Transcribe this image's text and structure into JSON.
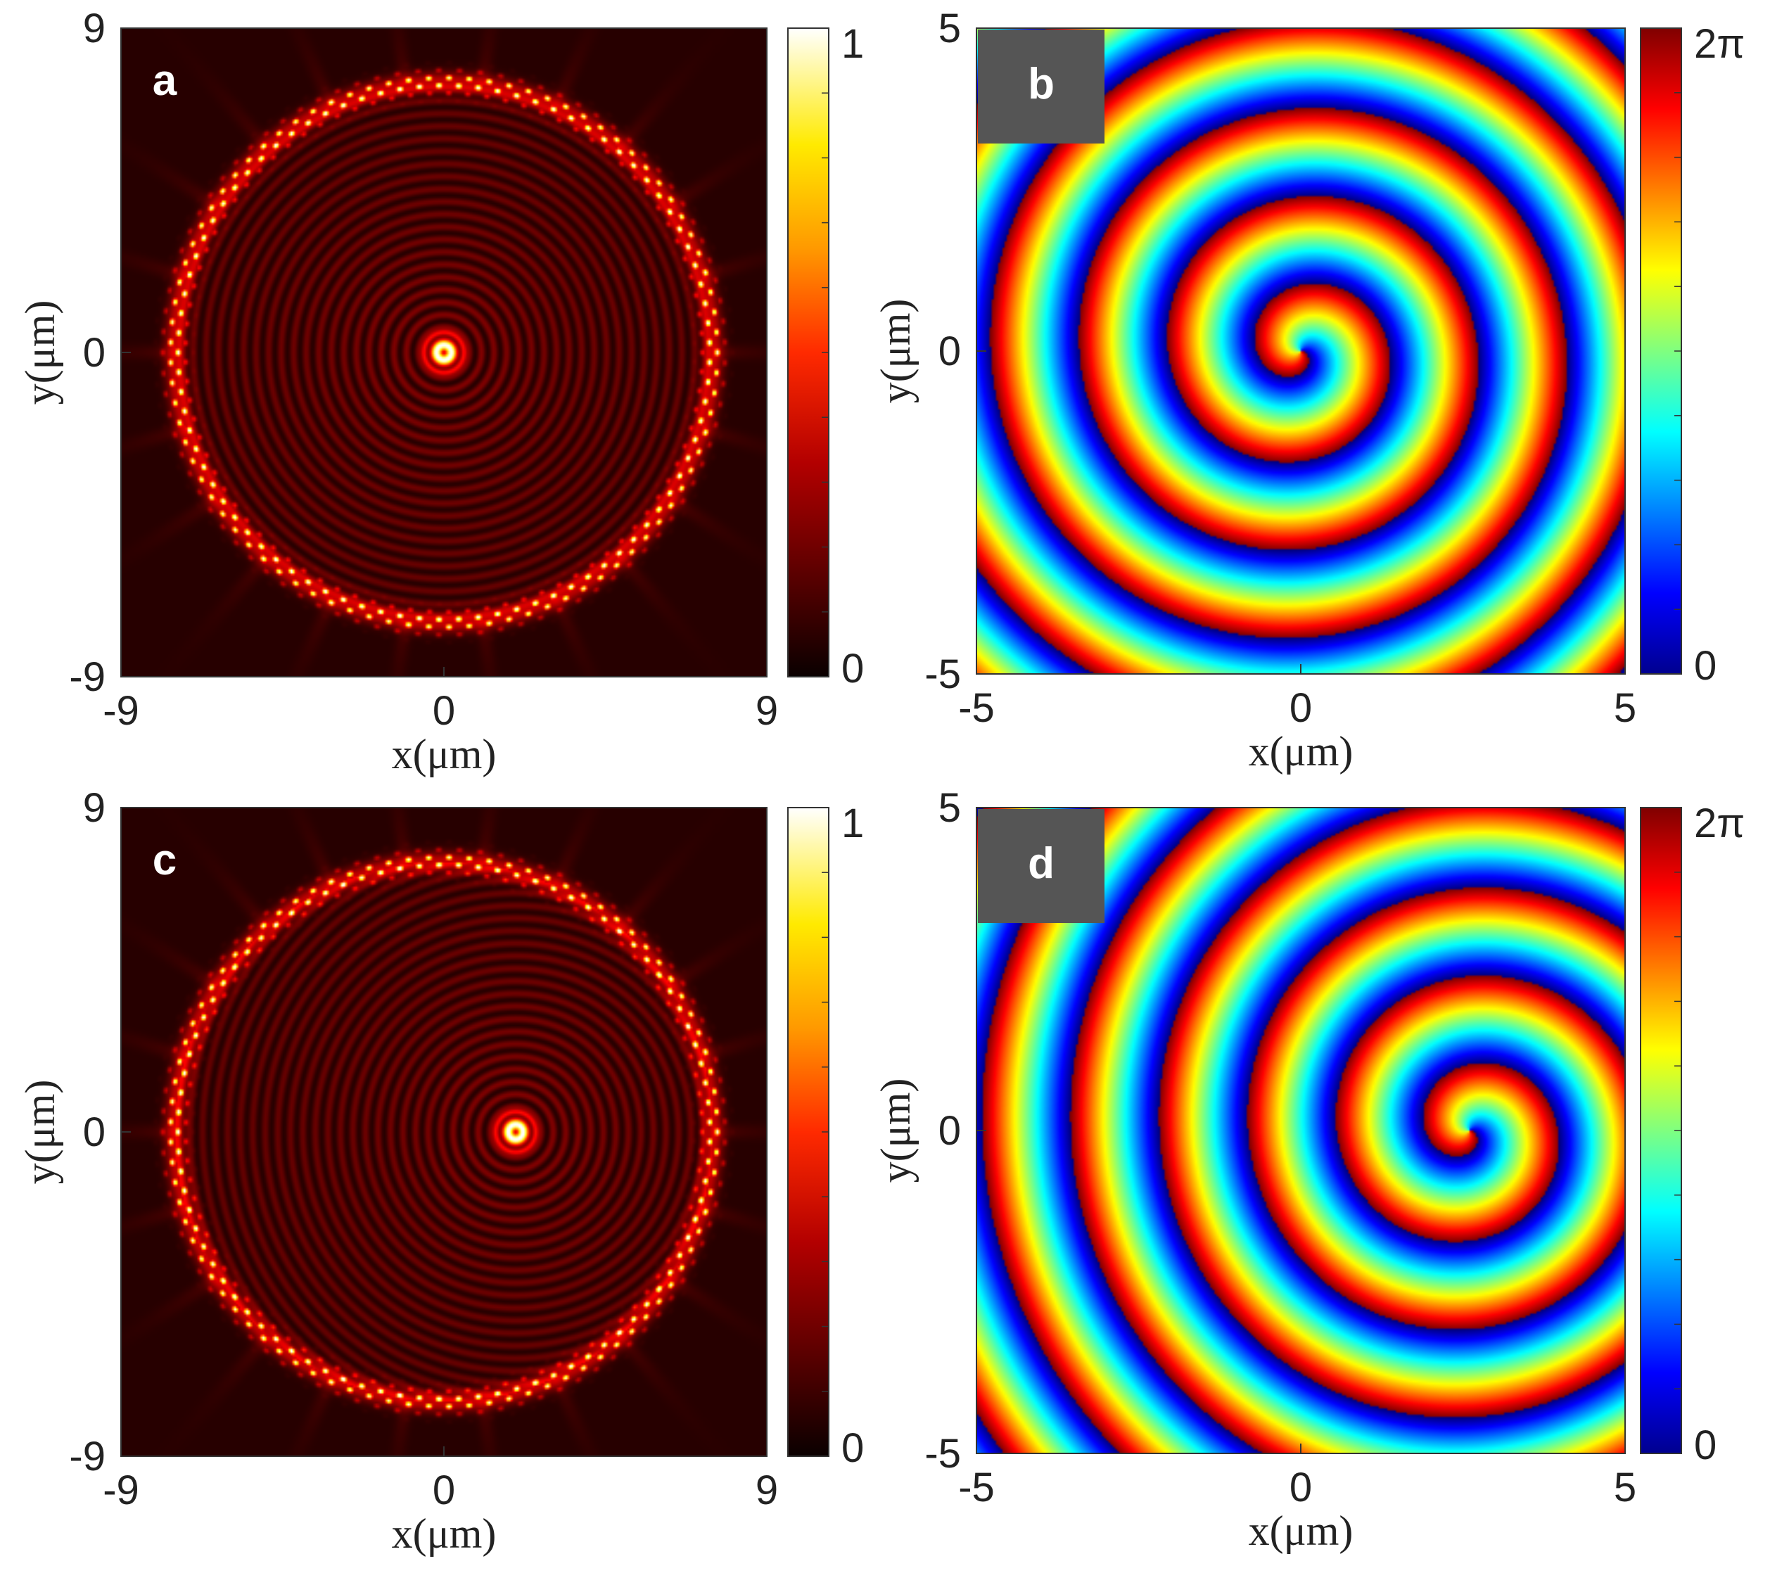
{
  "chart_data": [
    {
      "panel": "a",
      "type": "heatmap",
      "quantity": "normalized intensity",
      "xlabel": "x(μm)",
      "ylabel": "y(μm)",
      "xlim": [
        -9,
        9
      ],
      "ylim": [
        -9,
        9
      ],
      "xticks": [
        "-9",
        "0",
        "9"
      ],
      "yticks": [
        "9",
        "0",
        "-9"
      ],
      "colorbar": {
        "colormap": "hot",
        "min": 0,
        "max": 1,
        "tick_labels": [
          "1",
          "0"
        ]
      },
      "features": {
        "vortex_core": [
          0,
          0
        ],
        "outer_ring_radius": 7.5
      },
      "label_style": "white-text"
    },
    {
      "panel": "b",
      "type": "heatmap",
      "quantity": "phase",
      "xlabel": "x(μm)",
      "ylabel": "y(μm)",
      "xlim": [
        -5,
        5
      ],
      "ylim": [
        -5,
        5
      ],
      "xticks": [
        "-5",
        "0",
        "5"
      ],
      "yticks": [
        "5",
        "0",
        "-5"
      ],
      "colorbar": {
        "colormap": "jet",
        "min": 0,
        "max": 6.2832,
        "tick_labels": [
          "2π",
          "0"
        ]
      },
      "features": {
        "vortex_core": [
          0,
          0
        ]
      },
      "label_style": "grey-box"
    },
    {
      "panel": "c",
      "type": "heatmap",
      "quantity": "normalized intensity",
      "xlabel": "x(μm)",
      "ylabel": "y(μm)",
      "xlim": [
        -9,
        9
      ],
      "ylim": [
        -9,
        9
      ],
      "xticks": [
        "-9",
        "0",
        "9"
      ],
      "yticks": [
        "9",
        "0",
        "-9"
      ],
      "colorbar": {
        "colormap": "hot",
        "min": 0,
        "max": 1,
        "tick_labels": [
          "1",
          "0"
        ]
      },
      "features": {
        "vortex_core": [
          2,
          0
        ],
        "outer_ring_radius": 7.5
      },
      "label_style": "white-text"
    },
    {
      "panel": "d",
      "type": "heatmap",
      "quantity": "phase",
      "xlabel": "x(μm)",
      "ylabel": "y(μm)",
      "xlim": [
        -5,
        5
      ],
      "ylim": [
        -5,
        5
      ],
      "xticks": [
        "-5",
        "0",
        "5"
      ],
      "yticks": [
        "5",
        "0",
        "-5"
      ],
      "colorbar": {
        "colormap": "jet",
        "min": 0,
        "max": 6.2832,
        "tick_labels": [
          "2π",
          "0"
        ]
      },
      "features": {
        "vortex_core": [
          2.6,
          0
        ]
      },
      "label_style": "grey-box"
    }
  ]
}
